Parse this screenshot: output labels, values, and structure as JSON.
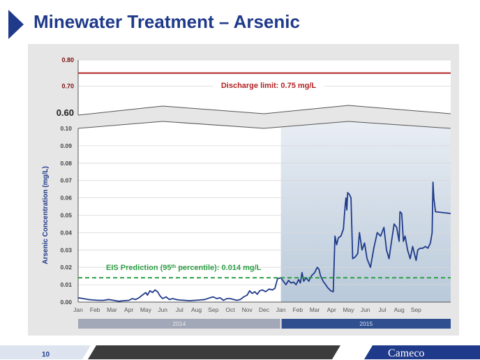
{
  "slide": {
    "title": "Minewater Treatment – Arsenic",
    "page_number": "10",
    "logo_text": "Cameco"
  },
  "colors": {
    "title": "#1f3a8a",
    "series_line": "#1f3a8a",
    "limit_line": "#b22222",
    "prediction_line": "#2e9e44",
    "shade_2015": "#c9d6e3",
    "year_bar_2014": "#a3a8b8",
    "year_bar_2015": "#2f4f8f"
  },
  "chart_data": {
    "type": "line",
    "ylabel": "Arsenic Concentration (mg/L)",
    "axis_break": true,
    "upper_panel": {
      "ylim": [
        0.6,
        0.8
      ],
      "ticks": [
        "0.80",
        "0.70",
        "0.60"
      ],
      "tick_values": [
        0.8,
        0.7,
        0.6
      ]
    },
    "lower_panel": {
      "ylim": [
        0.0,
        0.1
      ],
      "ticks": [
        "0.10",
        "0.09",
        "0.08",
        "0.07",
        "0.06",
        "0.05",
        "0.04",
        "0.03",
        "0.02",
        "0.01",
        "0.00"
      ],
      "tick_values": [
        0.1,
        0.09,
        0.08,
        0.07,
        0.06,
        0.05,
        0.04,
        0.03,
        0.02,
        0.01,
        0.0
      ]
    },
    "x_months": [
      "Jan",
      "Feb",
      "Mar",
      "Apr",
      "May",
      "Jun",
      "Jul",
      "Aug",
      "Sep",
      "Oct",
      "Nov",
      "Dec",
      "Jan",
      "Feb",
      "Mar",
      "Apr",
      "May",
      "Jun",
      "Jul",
      "Aug",
      "Sep"
    ],
    "years": [
      {
        "label": "2014",
        "start_month": 0,
        "end_month": 12
      },
      {
        "label": "2015",
        "start_month": 12,
        "end_month": 21.1
      }
    ],
    "grid": true,
    "shaded_region": {
      "start_month": 12,
      "end_month": 21.1,
      "label": "2015"
    },
    "annotations": [
      {
        "text": "Discharge limit: 0.75 mg/L",
        "value": 0.75,
        "panel": "upper",
        "color": "limit"
      },
      {
        "text": "EIS Prediction (95",
        "sup": "th",
        "text_after": " percentile): 0.014 mg/L",
        "value": 0.014,
        "panel": "lower",
        "color": "prediction"
      }
    ],
    "series": [
      {
        "points": [
          [
            0.0,
            0.0025
          ],
          [
            0.3,
            0.002
          ],
          [
            0.6,
            0.0015
          ],
          [
            0.9,
            0.0012
          ],
          [
            1.2,
            0.001
          ],
          [
            1.5,
            0.001
          ],
          [
            1.8,
            0.0015
          ],
          [
            2.1,
            0.001
          ],
          [
            2.4,
            0.0005
          ],
          [
            2.7,
            0.0008
          ],
          [
            3.0,
            0.001
          ],
          [
            3.2,
            0.002
          ],
          [
            3.4,
            0.0015
          ],
          [
            3.6,
            0.0025
          ],
          [
            3.8,
            0.004
          ],
          [
            4.0,
            0.0055
          ],
          [
            4.1,
            0.004
          ],
          [
            4.25,
            0.0065
          ],
          [
            4.4,
            0.0055
          ],
          [
            4.55,
            0.007
          ],
          [
            4.7,
            0.006
          ],
          [
            4.85,
            0.0035
          ],
          [
            5.0,
            0.002
          ],
          [
            5.2,
            0.003
          ],
          [
            5.4,
            0.0015
          ],
          [
            5.6,
            0.002
          ],
          [
            5.8,
            0.0015
          ],
          [
            6.0,
            0.0012
          ],
          [
            6.3,
            0.001
          ],
          [
            6.6,
            0.0008
          ],
          [
            6.9,
            0.001
          ],
          [
            7.2,
            0.0012
          ],
          [
            7.5,
            0.0015
          ],
          [
            7.8,
            0.0025
          ],
          [
            8.0,
            0.003
          ],
          [
            8.2,
            0.002
          ],
          [
            8.4,
            0.0025
          ],
          [
            8.6,
            0.001
          ],
          [
            8.8,
            0.002
          ],
          [
            9.0,
            0.002
          ],
          [
            9.2,
            0.0015
          ],
          [
            9.4,
            0.001
          ],
          [
            9.6,
            0.0015
          ],
          [
            9.8,
            0.003
          ],
          [
            10.0,
            0.004
          ],
          [
            10.15,
            0.0065
          ],
          [
            10.3,
            0.005
          ],
          [
            10.45,
            0.006
          ],
          [
            10.6,
            0.0045
          ],
          [
            10.75,
            0.0065
          ],
          [
            10.9,
            0.007
          ],
          [
            11.1,
            0.006
          ],
          [
            11.3,
            0.0075
          ],
          [
            11.5,
            0.007
          ],
          [
            11.65,
            0.008
          ],
          [
            11.8,
            0.0135
          ],
          [
            12.0,
            0.014
          ],
          [
            12.15,
            0.012
          ],
          [
            12.3,
            0.01
          ],
          [
            12.45,
            0.0125
          ],
          [
            12.6,
            0.011
          ],
          [
            12.75,
            0.0115
          ],
          [
            12.9,
            0.01
          ],
          [
            13.05,
            0.013
          ],
          [
            13.15,
            0.011
          ],
          [
            13.25,
            0.017
          ],
          [
            13.35,
            0.012
          ],
          [
            13.5,
            0.014
          ],
          [
            13.65,
            0.012
          ],
          [
            13.8,
            0.015
          ],
          [
            14.0,
            0.017
          ],
          [
            14.15,
            0.02
          ],
          [
            14.25,
            0.019
          ],
          [
            14.35,
            0.015
          ],
          [
            14.5,
            0.012
          ],
          [
            14.65,
            0.01
          ],
          [
            14.8,
            0.008
          ],
          [
            14.95,
            0.0065
          ],
          [
            15.1,
            0.006
          ],
          [
            15.2,
            0.038
          ],
          [
            15.3,
            0.033
          ],
          [
            15.4,
            0.037
          ],
          [
            15.55,
            0.038
          ],
          [
            15.7,
            0.042
          ],
          [
            15.8,
            0.055
          ],
          [
            15.85,
            0.06
          ],
          [
            15.9,
            0.053
          ],
          [
            15.95,
            0.063
          ],
          [
            16.05,
            0.062
          ],
          [
            16.15,
            0.06
          ],
          [
            16.25,
            0.025
          ],
          [
            16.4,
            0.026
          ],
          [
            16.55,
            0.028
          ],
          [
            16.65,
            0.04
          ],
          [
            16.8,
            0.03
          ],
          [
            16.95,
            0.034
          ],
          [
            17.1,
            0.025
          ],
          [
            17.3,
            0.02
          ],
          [
            17.5,
            0.031
          ],
          [
            17.7,
            0.04
          ],
          [
            17.9,
            0.038
          ],
          [
            18.1,
            0.043
          ],
          [
            18.25,
            0.03
          ],
          [
            18.4,
            0.025
          ],
          [
            18.55,
            0.035
          ],
          [
            18.7,
            0.045
          ],
          [
            18.85,
            0.043
          ],
          [
            19.0,
            0.035
          ],
          [
            19.05,
            0.052
          ],
          [
            19.15,
            0.051
          ],
          [
            19.25,
            0.035
          ],
          [
            19.35,
            0.038
          ],
          [
            19.5,
            0.03
          ],
          [
            19.65,
            0.025
          ],
          [
            19.8,
            0.032
          ],
          [
            19.9,
            0.028
          ],
          [
            20.0,
            0.024
          ],
          [
            20.1,
            0.03
          ],
          [
            20.25,
            0.031
          ],
          [
            20.4,
            0.031
          ],
          [
            20.55,
            0.032
          ],
          [
            20.7,
            0.031
          ],
          [
            20.85,
            0.034
          ],
          [
            20.95,
            0.04
          ],
          [
            21.0,
            0.069
          ],
          [
            21.05,
            0.06
          ],
          [
            21.1,
            0.056
          ],
          [
            21.15,
            0.052
          ],
          [
            22.05,
            0.051
          ]
        ]
      }
    ]
  }
}
